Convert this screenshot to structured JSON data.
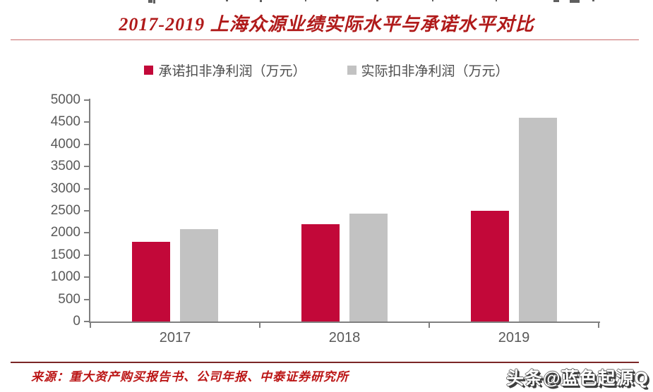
{
  "header": {
    "title": "2017-2019 上海众源业绩实际水平与承诺水平对比"
  },
  "legend": [
    {
      "label": "承诺扣非净利润（万元）",
      "color": "#c20839"
    },
    {
      "label": "实际扣非净利润（万元）",
      "color": "#c2c2c2"
    }
  ],
  "chart_data": {
    "type": "bar",
    "title": "2017-2019 上海众源业绩实际水平与承诺水平对比",
    "categories": [
      "2017",
      "2018",
      "2019"
    ],
    "series": [
      {
        "name": "承诺扣非净利润（万元）",
        "color": "#c20839",
        "values": [
          1800,
          2200,
          2500
        ]
      },
      {
        "name": "实际扣非净利润（万元）",
        "color": "#c2c2c2",
        "values": [
          2080,
          2430,
          4600
        ]
      }
    ],
    "xlabel": "",
    "ylabel": "",
    "ylim": [
      0,
      5000
    ],
    "ytick_step": 500,
    "grid": false,
    "legend_position": "top"
  },
  "footer": {
    "source": "来源：重大资产购买报告书、公司年报、中泰证券研究所",
    "watermark": "头条@蓝色起源Q"
  },
  "colors": {
    "title_red": "#b01a1a",
    "bar_red": "#c20839",
    "bar_gray": "#c2c2c2",
    "axis_gray": "#7f7f7f",
    "tick_label_gray": "#595959",
    "source_red": "#bb1515"
  }
}
